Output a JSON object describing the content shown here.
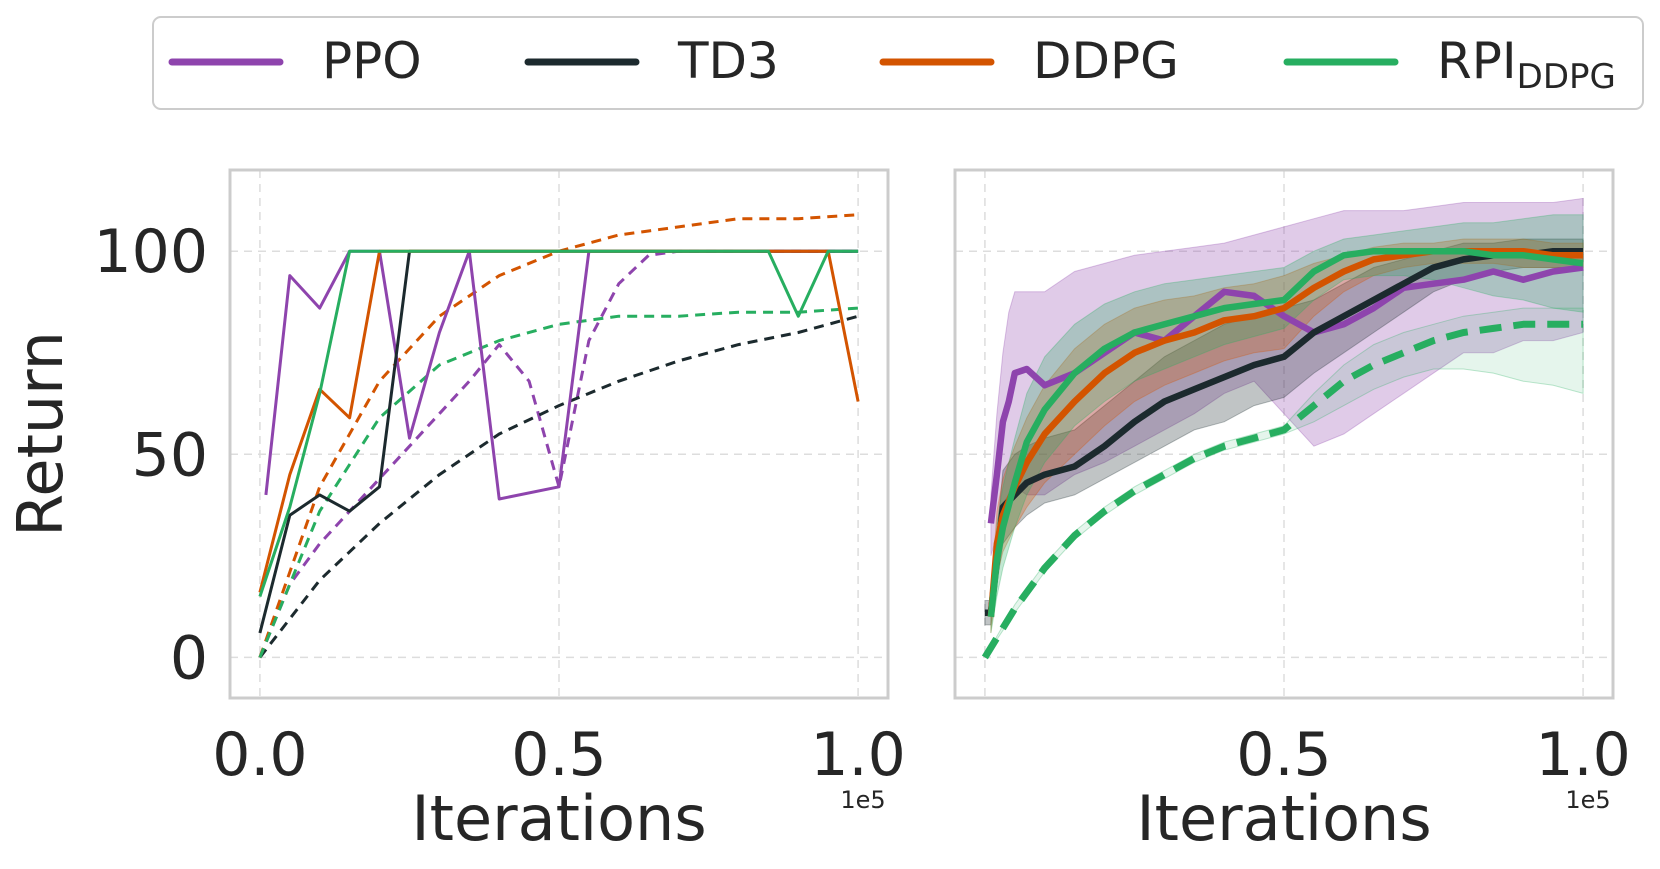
{
  "colors": {
    "ppo": "#8e44ad",
    "td3": "#1c2a2e",
    "ddpg": "#d35400",
    "rpi": "#27ae60",
    "grid": "#dddddd",
    "frame": "#cccccc"
  },
  "legend": {
    "entries": [
      {
        "key": "ppo",
        "label": "PPO",
        "sub": ""
      },
      {
        "key": "td3",
        "label": "TD3",
        "sub": ""
      },
      {
        "key": "ddpg",
        "label": "DDPG",
        "sub": ""
      },
      {
        "key": "rpi",
        "label": "RPI",
        "sub": "DDPG"
      }
    ]
  },
  "shared": {
    "ylabel": "Return",
    "yticks": [
      "0",
      "50",
      "100"
    ],
    "ytick_values": [
      0,
      50,
      100
    ],
    "xlabel": "Iterations",
    "offset_text": "1e5"
  },
  "chart_data": [
    {
      "type": "line",
      "panel": "left",
      "xlabel": "Iterations",
      "ylabel": "Return",
      "x_scale": "1e5",
      "xlim": [
        -0.05,
        1.05
      ],
      "ylim": [
        -10,
        120
      ],
      "xticks": [
        0.0,
        0.5,
        1.0
      ],
      "xtick_labels": [
        "0.0",
        "0.5",
        "1.0"
      ],
      "grid": true,
      "series": [
        {
          "name": "PPO",
          "color_key": "ppo",
          "style": "solid",
          "x": [
            0.01,
            0.05,
            0.1,
            0.15,
            0.2,
            0.25,
            0.3,
            0.35,
            0.4,
            0.5,
            0.55,
            0.6,
            0.7,
            1.0
          ],
          "y": [
            40,
            94,
            86,
            100,
            100,
            54,
            80,
            100,
            39,
            42,
            100,
            100,
            100,
            100
          ]
        },
        {
          "name": "TD3",
          "color_key": "td3",
          "style": "solid",
          "x": [
            0.0,
            0.05,
            0.1,
            0.15,
            0.2,
            0.25,
            1.0
          ],
          "y": [
            6,
            35,
            40,
            36,
            42,
            100,
            100
          ]
        },
        {
          "name": "DDPG",
          "color_key": "ddpg",
          "style": "solid",
          "x": [
            0.0,
            0.05,
            0.1,
            0.15,
            0.2,
            0.25,
            0.85,
            0.95,
            1.0
          ],
          "y": [
            16,
            45,
            66,
            59,
            100,
            100,
            100,
            100,
            63
          ]
        },
        {
          "name": "RPI_DDPG",
          "color_key": "rpi",
          "style": "solid",
          "x": [
            0.0,
            0.05,
            0.1,
            0.15,
            0.2,
            0.85,
            0.9,
            0.95,
            1.0
          ],
          "y": [
            15,
            37,
            65,
            100,
            100,
            100,
            84,
            100,
            100
          ]
        },
        {
          "name": "PPO (dashed)",
          "color_key": "ppo",
          "style": "dashed",
          "x": [
            0.0,
            0.05,
            0.1,
            0.15,
            0.2,
            0.25,
            0.3,
            0.35,
            0.4,
            0.45,
            0.5,
            0.55,
            0.6,
            0.65,
            0.7,
            1.0
          ],
          "y": [
            0,
            18,
            28,
            36,
            44,
            52,
            60,
            68,
            77,
            68,
            42,
            78,
            92,
            99,
            100,
            100
          ]
        },
        {
          "name": "TD3 (dashed)",
          "color_key": "td3",
          "style": "dashed",
          "x": [
            0.0,
            0.1,
            0.2,
            0.3,
            0.4,
            0.5,
            0.6,
            0.7,
            0.8,
            0.9,
            1.0
          ],
          "y": [
            0,
            19,
            33,
            45,
            55,
            62,
            68,
            73,
            77,
            80,
            84
          ]
        },
        {
          "name": "DDPG (dashed)",
          "color_key": "ddpg",
          "style": "dashed",
          "x": [
            0.0,
            0.1,
            0.2,
            0.3,
            0.4,
            0.5,
            0.6,
            0.7,
            0.8,
            0.9,
            1.0
          ],
          "y": [
            0,
            42,
            68,
            84,
            94,
            100,
            104,
            106,
            108,
            108,
            109
          ]
        },
        {
          "name": "RPI_DDPG (dashed)",
          "color_key": "rpi",
          "style": "dashed",
          "x": [
            0.0,
            0.1,
            0.2,
            0.3,
            0.4,
            0.5,
            0.6,
            0.7,
            0.8,
            0.9,
            1.0
          ],
          "y": [
            0,
            36,
            59,
            72,
            78,
            82,
            84,
            84,
            85,
            85,
            86
          ]
        }
      ]
    },
    {
      "type": "line",
      "panel": "right",
      "xlabel": "Iterations",
      "x_scale": "1e5",
      "xlim": [
        -0.05,
        1.05
      ],
      "ylim": [
        -10,
        120
      ],
      "xticks": [
        0.5,
        1.0
      ],
      "xtick_labels": [
        "0.5",
        "1.0"
      ],
      "grid": true,
      "series": [
        {
          "name": "PPO",
          "color_key": "ppo",
          "style": "solid",
          "width": "thick",
          "x": [
            0.01,
            0.02,
            0.03,
            0.04,
            0.05,
            0.07,
            0.1,
            0.15,
            0.2,
            0.25,
            0.3,
            0.35,
            0.4,
            0.45,
            0.5,
            0.55,
            0.6,
            0.65,
            0.7,
            0.75,
            0.8,
            0.85,
            0.9,
            0.95,
            1.0
          ],
          "y": [
            33,
            45,
            58,
            63,
            70,
            71,
            67,
            70,
            75,
            80,
            78,
            84,
            90,
            89,
            84,
            80,
            82,
            86,
            91,
            92,
            93,
            95,
            93,
            95,
            96
          ],
          "lo": [
            25,
            30,
            38,
            40,
            42,
            40,
            40,
            45,
            48,
            52,
            56,
            60,
            65,
            68,
            60,
            52,
            55,
            60,
            65,
            70,
            75,
            75,
            78,
            78,
            80
          ],
          "hi": [
            40,
            60,
            75,
            85,
            90,
            90,
            90,
            95,
            97,
            99,
            100,
            101,
            102,
            104,
            106,
            108,
            110,
            110,
            110,
            111,
            112,
            112,
            112,
            112,
            113
          ]
        },
        {
          "name": "TD3",
          "color_key": "td3",
          "style": "solid",
          "width": "thick",
          "x": [
            0.0,
            0.01,
            0.03,
            0.05,
            0.07,
            0.1,
            0.15,
            0.2,
            0.25,
            0.3,
            0.35,
            0.4,
            0.45,
            0.5,
            0.55,
            0.6,
            0.65,
            0.7,
            0.75,
            0.8,
            0.85,
            0.9,
            0.95,
            1.0
          ],
          "y": [
            11,
            11,
            37,
            40,
            43,
            45,
            47,
            52,
            58,
            63,
            66,
            69,
            72,
            74,
            80,
            84,
            88,
            92,
            96,
            98,
            99,
            99,
            100,
            100
          ],
          "lo": [
            8,
            8,
            28,
            32,
            35,
            38,
            40,
            44,
            48,
            52,
            56,
            58,
            62,
            64,
            70,
            75,
            80,
            85,
            90,
            93,
            95,
            96,
            96,
            96
          ],
          "hi": [
            14,
            14,
            46,
            50,
            52,
            54,
            56,
            62,
            68,
            74,
            78,
            82,
            84,
            86,
            88,
            92,
            96,
            98,
            100,
            102,
            102,
            103,
            103,
            103
          ]
        },
        {
          "name": "DDPG",
          "color_key": "ddpg",
          "style": "solid",
          "width": "thick",
          "x": [
            0.01,
            0.02,
            0.03,
            0.05,
            0.07,
            0.1,
            0.15,
            0.2,
            0.25,
            0.3,
            0.35,
            0.4,
            0.45,
            0.5,
            0.55,
            0.6,
            0.65,
            0.7,
            0.75,
            0.8,
            0.85,
            0.9,
            0.95,
            1.0
          ],
          "y": [
            10,
            28,
            35,
            42,
            48,
            55,
            63,
            70,
            75,
            78,
            80,
            83,
            84,
            86,
            91,
            95,
            98,
            99,
            100,
            100,
            100,
            100,
            99,
            99
          ],
          "lo": [
            6,
            20,
            26,
            32,
            37,
            43,
            50,
            57,
            63,
            67,
            70,
            73,
            75,
            76,
            84,
            90,
            94,
            96,
            97,
            97,
            97,
            96,
            96,
            96
          ],
          "hi": [
            14,
            36,
            44,
            52,
            59,
            67,
            76,
            82,
            86,
            88,
            89,
            91,
            92,
            94,
            97,
            99,
            101,
            102,
            102,
            103,
            103,
            103,
            102,
            102
          ]
        },
        {
          "name": "RPI_DDPG",
          "color_key": "rpi",
          "style": "solid",
          "width": "thick",
          "x": [
            0.01,
            0.02,
            0.03,
            0.05,
            0.07,
            0.1,
            0.15,
            0.2,
            0.25,
            0.3,
            0.35,
            0.4,
            0.45,
            0.5,
            0.55,
            0.6,
            0.65,
            0.7,
            0.75,
            0.8,
            0.85,
            0.9,
            0.95,
            1.0
          ],
          "y": [
            10,
            24,
            32,
            43,
            53,
            61,
            70,
            76,
            80,
            82,
            84,
            86,
            87,
            88,
            95,
            99,
            100,
            100,
            100,
            100,
            99,
            99,
            98,
            97
          ],
          "lo": [
            6,
            15,
            22,
            32,
            40,
            48,
            57,
            63,
            68,
            71,
            74,
            77,
            79,
            81,
            88,
            93,
            94,
            94,
            93,
            91,
            89,
            88,
            86,
            85
          ],
          "hi": [
            14,
            33,
            42,
            54,
            65,
            74,
            82,
            87,
            90,
            92,
            93,
            94,
            95,
            96,
            100,
            103,
            104,
            105,
            106,
            107,
            107,
            108,
            109,
            109
          ]
        },
        {
          "name": "RPI_DDPG (dashed)",
          "color_key": "rpi",
          "style": "dashed",
          "width": "thick",
          "x": [
            0.0,
            0.05,
            0.1,
            0.15,
            0.2,
            0.25,
            0.3,
            0.35,
            0.4,
            0.45,
            0.5,
            0.55,
            0.6,
            0.65,
            0.7,
            0.75,
            0.8,
            0.85,
            0.9,
            0.95,
            1.0
          ],
          "y": [
            0,
            12,
            22,
            30,
            36,
            41,
            45,
            49,
            52,
            54,
            56,
            62,
            68,
            72,
            75,
            78,
            80,
            81,
            82,
            82,
            82
          ],
          "lo": [
            0,
            11,
            21,
            29,
            35,
            40,
            44,
            48,
            51,
            53,
            55,
            58,
            62,
            66,
            69,
            71,
            71,
            70,
            68,
            67,
            65
          ],
          "hi": [
            0,
            13,
            23,
            31,
            37,
            42,
            46,
            50,
            53,
            55,
            57,
            65,
            72,
            77,
            80,
            82,
            84,
            85,
            86,
            86,
            86
          ]
        }
      ]
    }
  ]
}
